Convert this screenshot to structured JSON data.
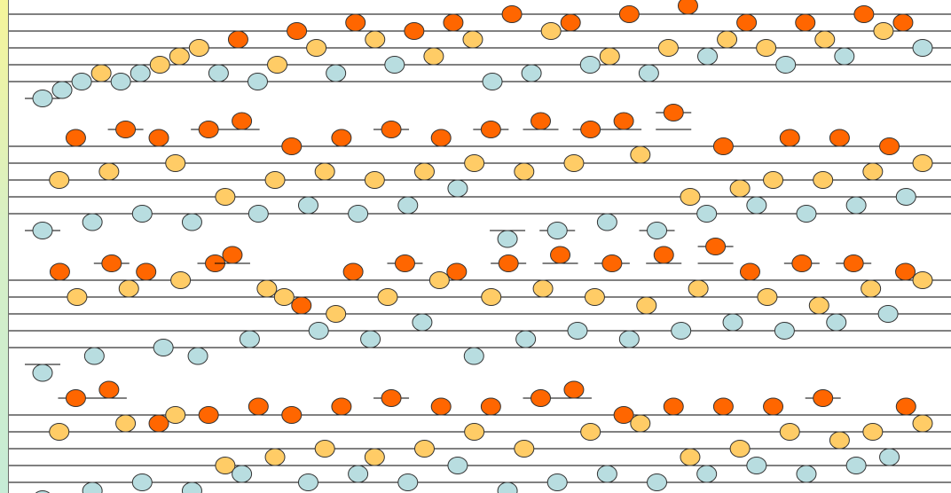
{
  "colors": {
    "background": "#ffffff",
    "staff_line": "#000000",
    "note_stroke": "#333333",
    "high": "#ff6600",
    "mid": "#ffcc66",
    "low": "#b8dde0"
  },
  "systems": [
    {
      "notes": [
        {
          "p": -2,
          "c": "low"
        },
        {
          "p": -1,
          "c": "low"
        },
        {
          "p": 0,
          "c": "low"
        },
        {
          "p": 1,
          "c": "mid"
        },
        {
          "p": 0,
          "c": "low"
        },
        {
          "p": 1,
          "c": "low"
        },
        {
          "p": 2,
          "c": "mid"
        },
        {
          "p": 3,
          "c": "mid"
        },
        {
          "p": 4,
          "c": "mid"
        },
        {
          "p": 1,
          "c": "low"
        },
        {
          "p": 5,
          "c": "high"
        },
        {
          "p": 0,
          "c": "low"
        },
        {
          "p": 2,
          "c": "mid"
        },
        {
          "p": 6,
          "c": "high"
        },
        {
          "p": 4,
          "c": "mid"
        },
        {
          "p": 1,
          "c": "low"
        },
        {
          "p": 7,
          "c": "high"
        },
        {
          "p": 5,
          "c": "mid"
        },
        {
          "p": 2,
          "c": "low"
        },
        {
          "p": 6,
          "c": "high"
        },
        {
          "p": 3,
          "c": "mid"
        },
        {
          "p": 7,
          "c": "high"
        },
        {
          "p": 5,
          "c": "mid"
        },
        {
          "p": 0,
          "c": "low"
        },
        {
          "p": 8,
          "c": "high"
        },
        {
          "p": 1,
          "c": "low"
        },
        {
          "p": 6,
          "c": "mid"
        },
        {
          "p": 7,
          "c": "high"
        },
        {
          "p": 2,
          "c": "low"
        },
        {
          "p": 3,
          "c": "mid"
        },
        {
          "p": 8,
          "c": "high"
        },
        {
          "p": 1,
          "c": "low"
        },
        {
          "p": 4,
          "c": "mid"
        },
        {
          "p": 9,
          "c": "high"
        },
        {
          "p": 3,
          "c": "low"
        },
        {
          "p": 5,
          "c": "mid"
        },
        {
          "p": 7,
          "c": "high"
        },
        {
          "p": 4,
          "c": "mid"
        },
        {
          "p": 2,
          "c": "low"
        },
        {
          "p": 7,
          "c": "high"
        },
        {
          "p": 5,
          "c": "mid"
        },
        {
          "p": 3,
          "c": "low"
        },
        {
          "p": 8,
          "c": "high"
        },
        {
          "p": 6,
          "c": "mid"
        },
        {
          "p": 7,
          "c": "high"
        },
        {
          "p": 4,
          "c": "low"
        }
      ]
    },
    {
      "notes": [
        {
          "p": -2,
          "c": "low"
        },
        {
          "p": 4,
          "c": "mid"
        },
        {
          "p": 9,
          "c": "high"
        },
        {
          "p": -1,
          "c": "low"
        },
        {
          "p": 5,
          "c": "mid"
        },
        {
          "p": 10,
          "c": "high"
        },
        {
          "p": 0,
          "c": "low"
        },
        {
          "p": 9,
          "c": "high"
        },
        {
          "p": 6,
          "c": "mid"
        },
        {
          "p": -1,
          "c": "low"
        },
        {
          "p": 10,
          "c": "high"
        },
        {
          "p": 2,
          "c": "mid"
        },
        {
          "p": 11,
          "c": "high"
        },
        {
          "p": 0,
          "c": "low"
        },
        {
          "p": 4,
          "c": "mid"
        },
        {
          "p": 8,
          "c": "high"
        },
        {
          "p": 1,
          "c": "low"
        },
        {
          "p": 5,
          "c": "mid"
        },
        {
          "p": 9,
          "c": "high"
        },
        {
          "p": 0,
          "c": "low"
        },
        {
          "p": 4,
          "c": "mid"
        },
        {
          "p": 10,
          "c": "high"
        },
        {
          "p": 1,
          "c": "low"
        },
        {
          "p": 5,
          "c": "mid"
        },
        {
          "p": 9,
          "c": "high"
        },
        {
          "p": 3,
          "c": "low"
        },
        {
          "p": 6,
          "c": "mid"
        },
        {
          "p": 10,
          "c": "high"
        },
        {
          "p": -3,
          "c": "low"
        },
        {
          "p": 5,
          "c": "mid"
        },
        {
          "p": 11,
          "c": "high"
        },
        {
          "p": -2,
          "c": "low"
        },
        {
          "p": 6,
          "c": "mid"
        },
        {
          "p": 10,
          "c": "high"
        },
        {
          "p": -1,
          "c": "low"
        },
        {
          "p": 11,
          "c": "high"
        },
        {
          "p": 7,
          "c": "mid"
        },
        {
          "p": -2,
          "c": "low"
        },
        {
          "p": 12,
          "c": "high"
        },
        {
          "p": 2,
          "c": "mid"
        },
        {
          "p": 0,
          "c": "low"
        },
        {
          "p": 8,
          "c": "high"
        },
        {
          "p": 3,
          "c": "mid"
        },
        {
          "p": 1,
          "c": "low"
        },
        {
          "p": 4,
          "c": "mid"
        },
        {
          "p": 9,
          "c": "high"
        },
        {
          "p": 0,
          "c": "low"
        },
        {
          "p": 4,
          "c": "mid"
        },
        {
          "p": 9,
          "c": "high"
        },
        {
          "p": 1,
          "c": "low"
        },
        {
          "p": 5,
          "c": "mid"
        },
        {
          "p": 8,
          "c": "high"
        },
        {
          "p": 2,
          "c": "low"
        },
        {
          "p": 6,
          "c": "mid"
        }
      ]
    },
    {
      "notes": [
        {
          "p": -3,
          "c": "low"
        },
        {
          "p": 9,
          "c": "high"
        },
        {
          "p": 6,
          "c": "mid"
        },
        {
          "p": -1,
          "c": "low"
        },
        {
          "p": 10,
          "c": "high"
        },
        {
          "p": 7,
          "c": "mid"
        },
        {
          "p": 9,
          "c": "high"
        },
        {
          "p": 0,
          "c": "low"
        },
        {
          "p": 8,
          "c": "mid"
        },
        {
          "p": -1,
          "c": "low"
        },
        {
          "p": 10,
          "c": "high"
        },
        {
          "p": 11,
          "c": "high"
        },
        {
          "p": 1,
          "c": "low"
        },
        {
          "p": 7,
          "c": "mid"
        },
        {
          "p": 6,
          "c": "mid"
        },
        {
          "p": 5,
          "c": "high"
        },
        {
          "p": 2,
          "c": "low"
        },
        {
          "p": 4,
          "c": "mid"
        },
        {
          "p": 9,
          "c": "high"
        },
        {
          "p": 1,
          "c": "low"
        },
        {
          "p": 6,
          "c": "mid"
        },
        {
          "p": 10,
          "c": "high"
        },
        {
          "p": 3,
          "c": "low"
        },
        {
          "p": 8,
          "c": "mid"
        },
        {
          "p": 9,
          "c": "high"
        },
        {
          "p": -1,
          "c": "low"
        },
        {
          "p": 6,
          "c": "mid"
        },
        {
          "p": 10,
          "c": "high"
        },
        {
          "p": 1,
          "c": "low"
        },
        {
          "p": 7,
          "c": "mid"
        },
        {
          "p": 11,
          "c": "high"
        },
        {
          "p": 2,
          "c": "low"
        },
        {
          "p": 6,
          "c": "mid"
        },
        {
          "p": 10,
          "c": "high"
        },
        {
          "p": 1,
          "c": "low"
        },
        {
          "p": 5,
          "c": "mid"
        },
        {
          "p": 11,
          "c": "high"
        },
        {
          "p": 2,
          "c": "low"
        },
        {
          "p": 7,
          "c": "mid"
        },
        {
          "p": 12,
          "c": "high"
        },
        {
          "p": 3,
          "c": "low"
        },
        {
          "p": 9,
          "c": "high"
        },
        {
          "p": 6,
          "c": "mid"
        },
        {
          "p": 2,
          "c": "low"
        },
        {
          "p": 10,
          "c": "high"
        },
        {
          "p": 5,
          "c": "mid"
        },
        {
          "p": 3,
          "c": "low"
        },
        {
          "p": 10,
          "c": "high"
        },
        {
          "p": 7,
          "c": "mid"
        },
        {
          "p": 4,
          "c": "low"
        },
        {
          "p": 9,
          "c": "high"
        },
        {
          "p": 8,
          "c": "mid"
        }
      ]
    },
    {
      "notes": [
        {
          "p": -2,
          "c": "low"
        },
        {
          "p": 6,
          "c": "mid"
        },
        {
          "p": 10,
          "c": "high"
        },
        {
          "p": -1,
          "c": "low"
        },
        {
          "p": 11,
          "c": "high"
        },
        {
          "p": 7,
          "c": "mid"
        },
        {
          "p": 0,
          "c": "low"
        },
        {
          "p": 7,
          "c": "high"
        },
        {
          "p": 8,
          "c": "mid"
        },
        {
          "p": -1,
          "c": "low"
        },
        {
          "p": 8,
          "c": "high"
        },
        {
          "p": 2,
          "c": "mid"
        },
        {
          "p": 1,
          "c": "low"
        },
        {
          "p": 9,
          "c": "high"
        },
        {
          "p": 3,
          "c": "mid"
        },
        {
          "p": 8,
          "c": "high"
        },
        {
          "p": 0,
          "c": "low"
        },
        {
          "p": 4,
          "c": "mid"
        },
        {
          "p": 9,
          "c": "high"
        },
        {
          "p": 1,
          "c": "low"
        },
        {
          "p": 3,
          "c": "mid"
        },
        {
          "p": 10,
          "c": "high"
        },
        {
          "p": 0,
          "c": "low"
        },
        {
          "p": 4,
          "c": "mid"
        },
        {
          "p": 9,
          "c": "high"
        },
        {
          "p": 2,
          "c": "low"
        },
        {
          "p": 6,
          "c": "mid"
        },
        {
          "p": 9,
          "c": "high"
        },
        {
          "p": -1,
          "c": "low"
        },
        {
          "p": 4,
          "c": "mid"
        },
        {
          "p": 10,
          "c": "high"
        },
        {
          "p": 0,
          "c": "low"
        },
        {
          "p": 11,
          "c": "high"
        },
        {
          "p": 6,
          "c": "mid"
        },
        {
          "p": 1,
          "c": "low"
        },
        {
          "p": 8,
          "c": "high"
        },
        {
          "p": 7,
          "c": "mid"
        },
        {
          "p": 0,
          "c": "low"
        },
        {
          "p": 9,
          "c": "high"
        },
        {
          "p": 3,
          "c": "mid"
        },
        {
          "p": 1,
          "c": "low"
        },
        {
          "p": 9,
          "c": "high"
        },
        {
          "p": 4,
          "c": "mid"
        },
        {
          "p": 2,
          "c": "low"
        },
        {
          "p": 9,
          "c": "high"
        },
        {
          "p": 6,
          "c": "mid"
        },
        {
          "p": 1,
          "c": "low"
        },
        {
          "p": 10,
          "c": "high"
        },
        {
          "p": 5,
          "c": "mid"
        },
        {
          "p": 2,
          "c": "low"
        },
        {
          "p": 6,
          "c": "mid"
        },
        {
          "p": 3,
          "c": "low"
        },
        {
          "p": 9,
          "c": "high"
        },
        {
          "p": 7,
          "c": "mid"
        }
      ]
    }
  ]
}
